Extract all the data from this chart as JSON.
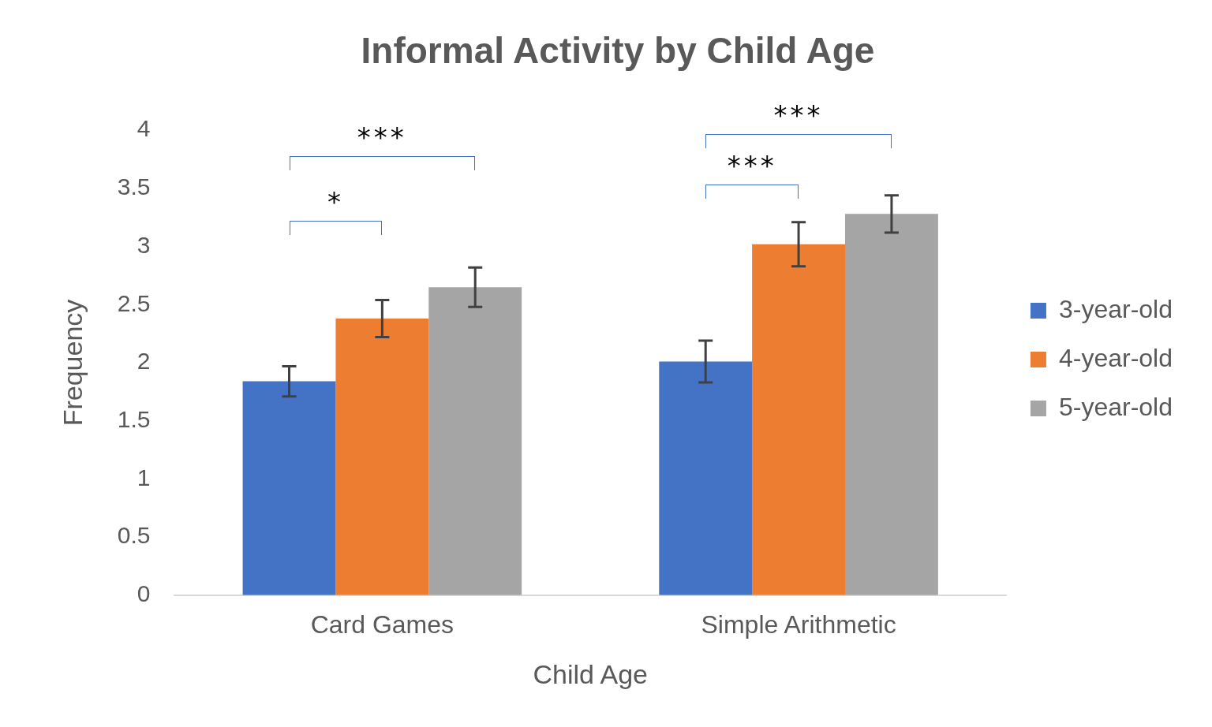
{
  "chart_data": {
    "type": "bar",
    "title": "Informal Activity by Child Age",
    "xlabel": "Child Age",
    "ylabel": "Frequency",
    "categories": [
      "Card Games",
      "Simple Arithmetic"
    ],
    "series": [
      {
        "name": "3-year-old",
        "color": "#4472c4",
        "values": [
          1.84,
          2.01
        ],
        "errors": [
          0.13,
          0.18
        ]
      },
      {
        "name": "4-year-old",
        "color": "#ed7d31",
        "values": [
          2.38,
          3.02
        ],
        "errors": [
          0.16,
          0.19
        ]
      },
      {
        "name": "5-year-old",
        "color": "#a5a5a5",
        "values": [
          2.65,
          3.28
        ],
        "errors": [
          0.17,
          0.16
        ]
      }
    ],
    "ylim": [
      0,
      4
    ],
    "yticks": [
      0,
      0.5,
      1,
      1.5,
      2,
      2.5,
      3,
      3.5,
      4
    ],
    "grid": false,
    "legend": "right",
    "annotations": [
      "***",
      "*",
      "***",
      "***"
    ]
  }
}
